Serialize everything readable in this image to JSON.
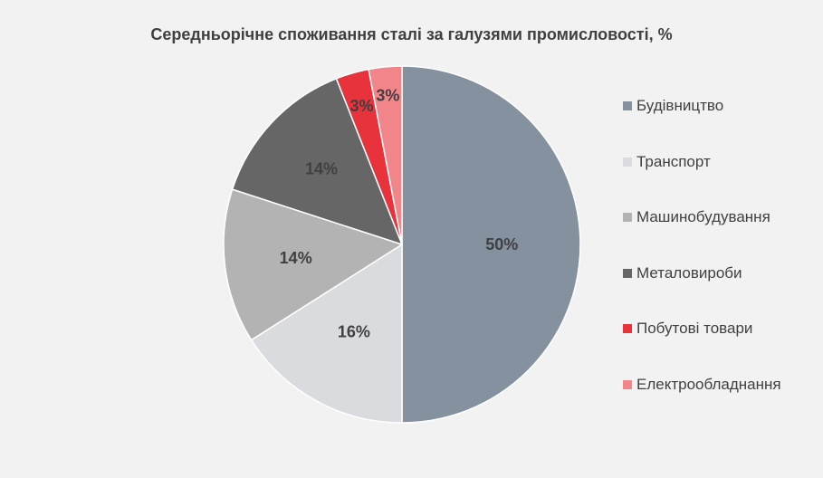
{
  "chart_data": {
    "type": "pie",
    "title": "Середньорічне споживання сталі за галузями промисловості, %",
    "categories": [
      "Будівництво",
      "Транспорт",
      "Машинобудування",
      "Металовироби",
      "Побутові товари",
      "Електрообладнання"
    ],
    "values": [
      50,
      16,
      14,
      14,
      3,
      3
    ],
    "data_labels": [
      "50%",
      "16%",
      "14%",
      "14%",
      "3%",
      "3%"
    ],
    "colors": [
      "#85919f",
      "#d9dbdf",
      "#b3b3b3",
      "#666666",
      "#e8333c",
      "#f2858a"
    ],
    "start": "12 o'clock",
    "direction": "clockwise",
    "legend_position": "right"
  }
}
